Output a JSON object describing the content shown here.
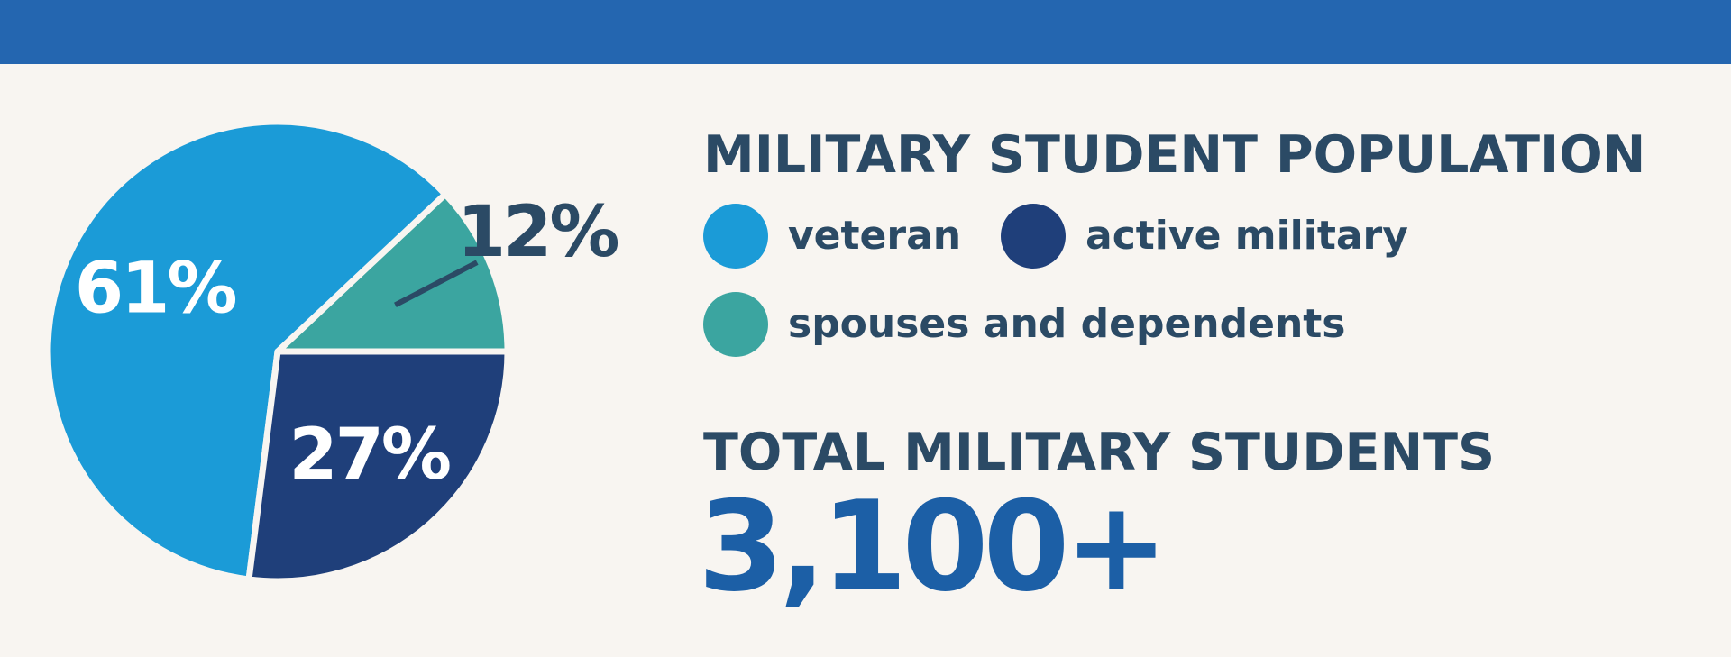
{
  "colors": {
    "top_bar": "#2466b0",
    "background": "#f8f5f1",
    "text_dark": "#2b4a65",
    "total_value": "#1c5fa6",
    "slice_divider": "#f8f5f1"
  },
  "chart_data": {
    "type": "pie",
    "title": "MILITARY STUDENT POPULATION",
    "labels": [
      "veteran",
      "active military",
      "spouses and dependents"
    ],
    "values": [
      61,
      27,
      12
    ],
    "value_labels": [
      "61%",
      "27%",
      "12%"
    ],
    "colors": [
      "#1b9bd7",
      "#1f3f7a",
      "#3ba5a0"
    ],
    "legend_position": "right"
  },
  "legend": {
    "items": [
      {
        "label": "veteran",
        "color": "#1b9bd7",
        "icon": "circle"
      },
      {
        "label": "active military",
        "color": "#1f3f7a",
        "icon": "circle"
      },
      {
        "label": "spouses and dependents",
        "color": "#3ba5a0",
        "icon": "circle"
      }
    ]
  },
  "totals": {
    "label": "TOTAL MILITARY STUDENTS",
    "value": "3,100+"
  }
}
